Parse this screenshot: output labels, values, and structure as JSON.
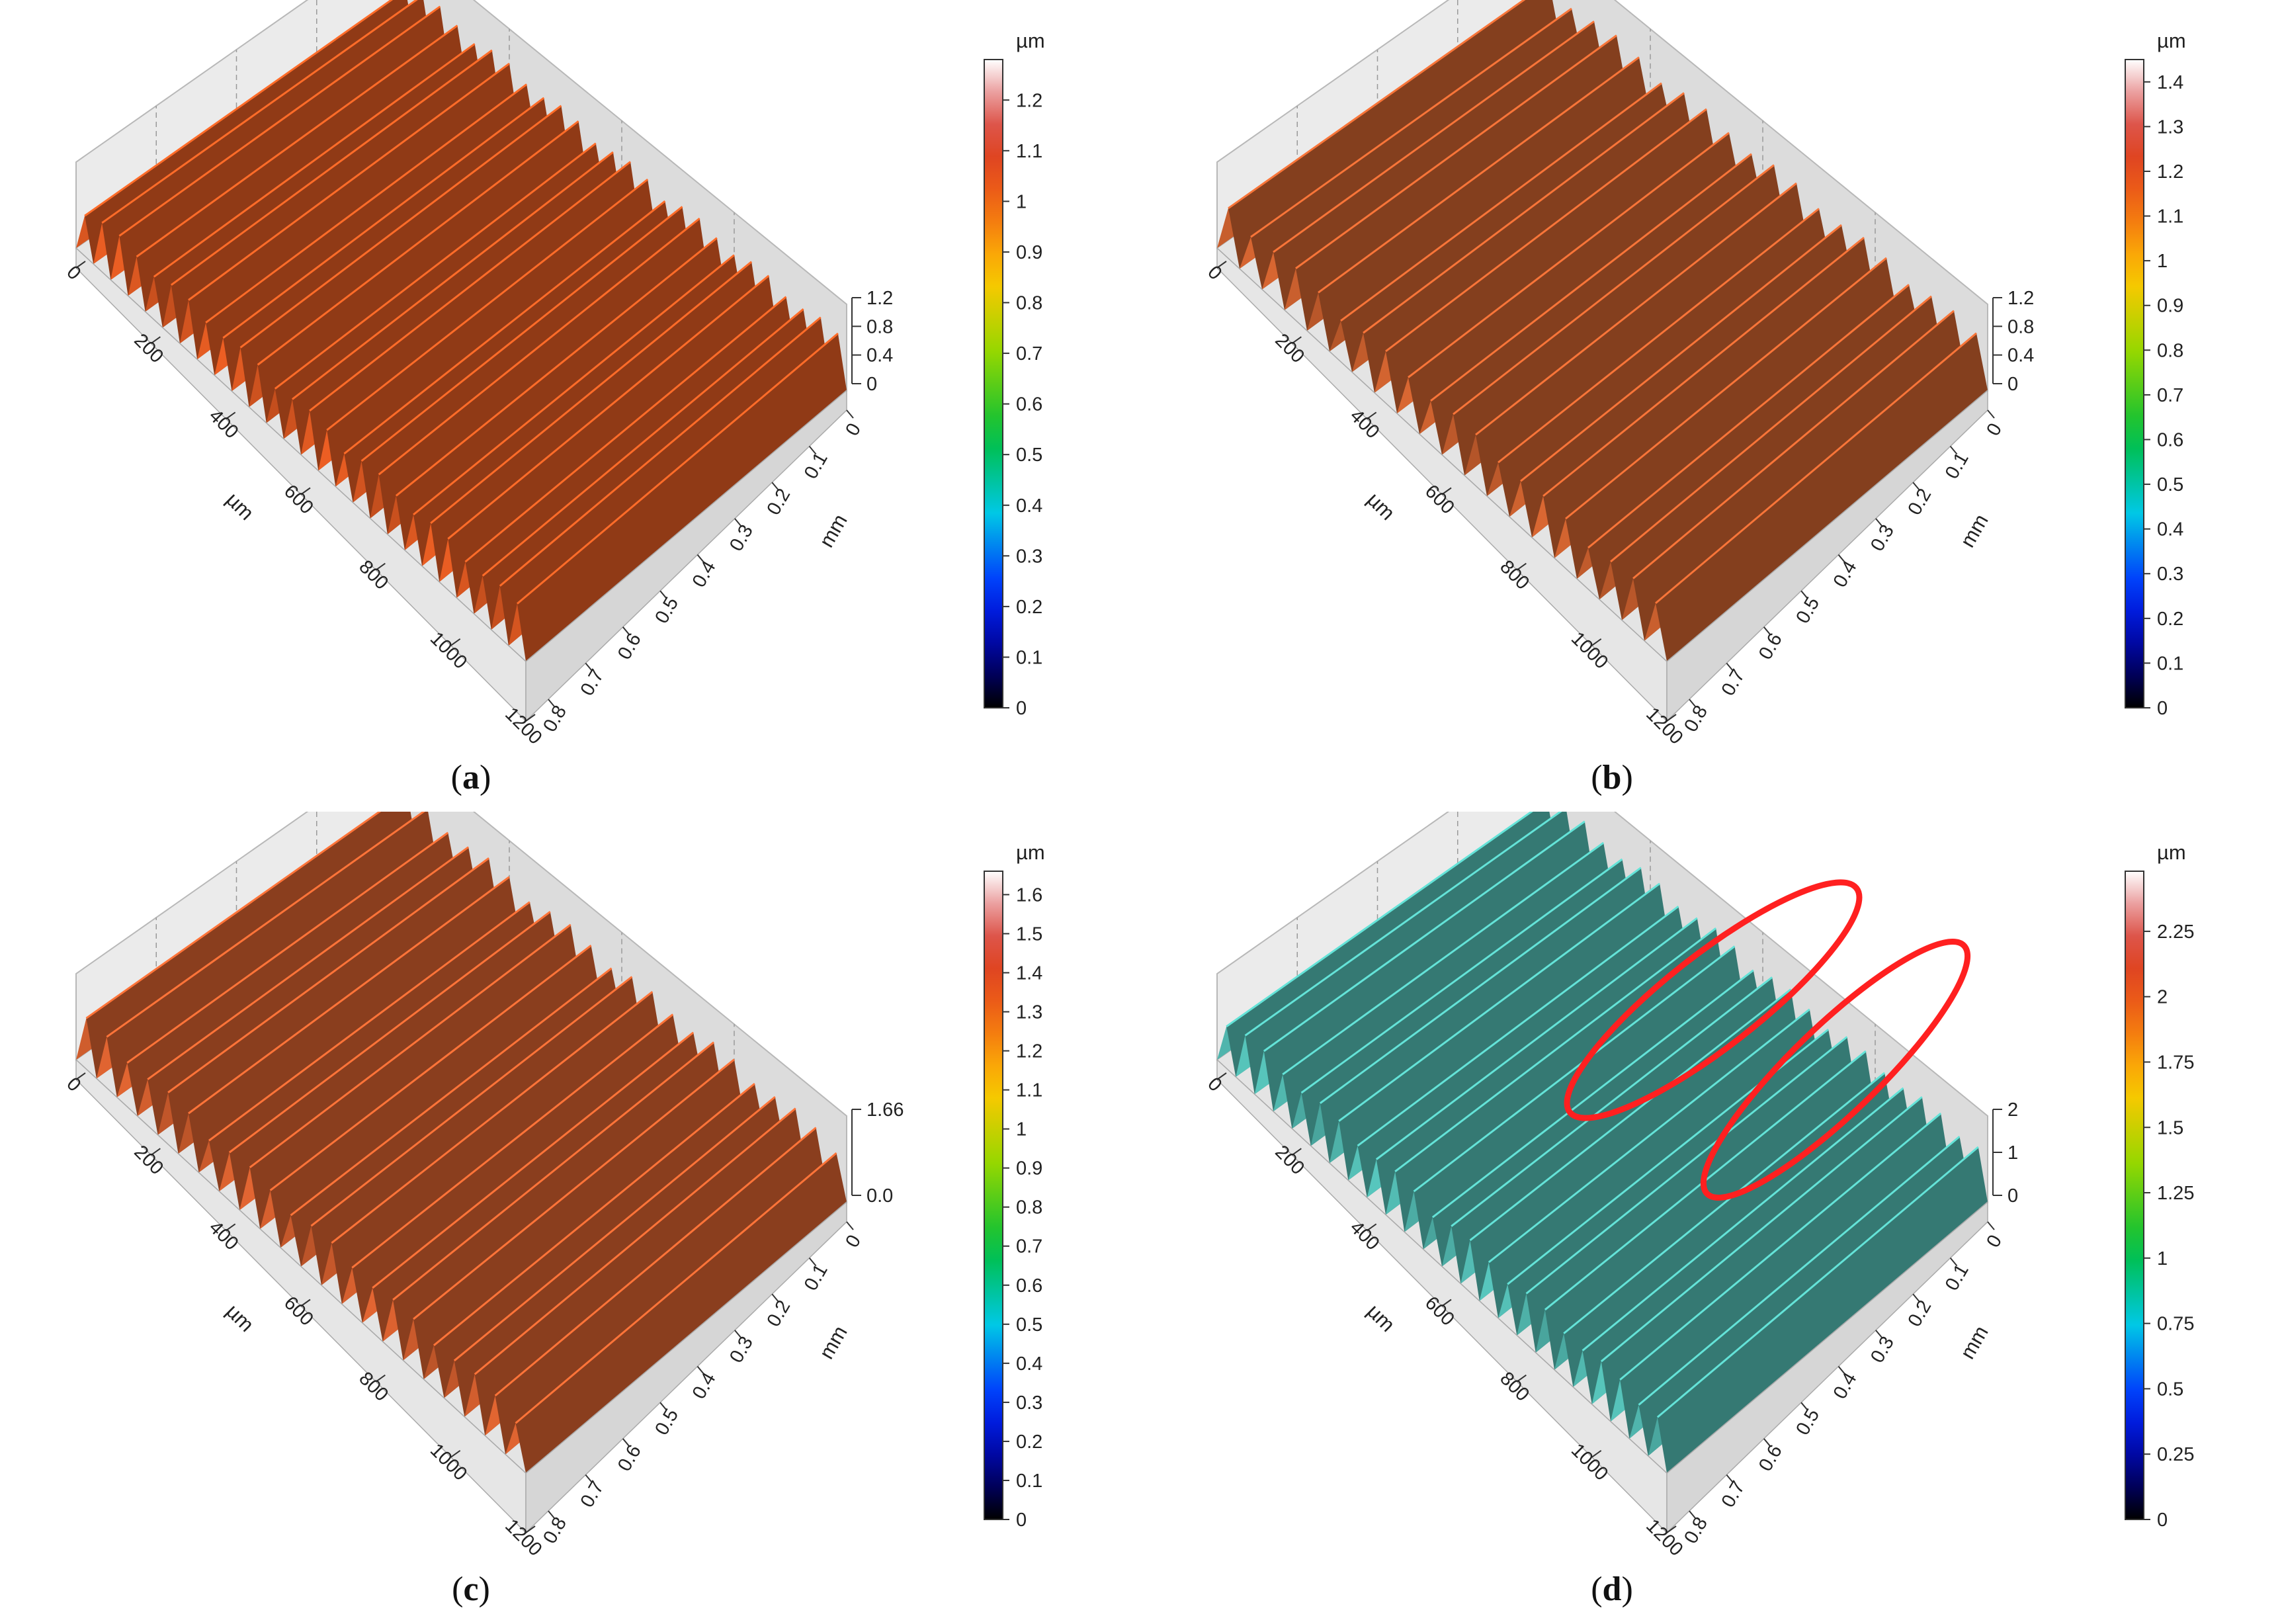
{
  "chart_data": [
    {
      "type": "surface",
      "caption_letter": "a",
      "x_axis_unit": "µm",
      "x_ticks": [
        "0",
        "200",
        "400",
        "600",
        "800",
        "1000",
        "1200"
      ],
      "y_axis_unit": "mm",
      "y_ticks": [
        "0",
        "0.1",
        "0.2",
        "0.3",
        "0.4",
        "0.5",
        "0.6",
        "0.7",
        "0.8"
      ],
      "z_ticks": [
        "0",
        "0.4",
        "0.8",
        "1.2"
      ],
      "colorbar_unit": "µm",
      "colorbar_ticks": [
        "0",
        "0.1",
        "0.2",
        "0.3",
        "0.4",
        "0.5",
        "0.6",
        "0.7",
        "0.8",
        "0.9",
        "1",
        "1.1",
        "1.2"
      ],
      "colorbar_range": [
        0,
        1.28
      ],
      "ridge_count": 26,
      "dominant_color": "#c8501e",
      "ellipses": []
    },
    {
      "type": "surface",
      "caption_letter": "b",
      "x_axis_unit": "µm",
      "x_ticks": [
        "0",
        "200",
        "400",
        "600",
        "800",
        "1000",
        "1200"
      ],
      "y_axis_unit": "mm",
      "y_ticks": [
        "0",
        "0.1",
        "0.2",
        "0.3",
        "0.4",
        "0.5",
        "0.6",
        "0.7",
        "0.8"
      ],
      "z_ticks": [
        "0",
        "0.4",
        "0.8",
        "1.2"
      ],
      "colorbar_unit": "µm",
      "colorbar_ticks": [
        "0",
        "0.1",
        "0.2",
        "0.3",
        "0.4",
        "0.5",
        "0.6",
        "0.7",
        "0.8",
        "0.9",
        "1",
        "1.1",
        "1.2",
        "1.3",
        "1.4"
      ],
      "colorbar_range": [
        0,
        1.45
      ],
      "ridge_count": 20,
      "dominant_color": "#b8572a",
      "ellipses": []
    },
    {
      "type": "surface",
      "caption_letter": "c",
      "x_axis_unit": "µm",
      "x_ticks": [
        "0",
        "200",
        "400",
        "600",
        "800",
        "1000",
        "1200"
      ],
      "y_axis_unit": "mm",
      "y_ticks": [
        "0",
        "0.1",
        "0.2",
        "0.3",
        "0.4",
        "0.5",
        "0.6",
        "0.7",
        "0.8"
      ],
      "z_ticks": [
        "0.0",
        "1.66"
      ],
      "colorbar_unit": "µm",
      "colorbar_ticks": [
        "0",
        "0.1",
        "0.2",
        "0.3",
        "0.4",
        "0.5",
        "0.6",
        "0.7",
        "0.8",
        "0.9",
        "1",
        "1.1",
        "1.2",
        "1.3",
        "1.4",
        "1.5",
        "1.6"
      ],
      "colorbar_range": [
        0,
        1.66
      ],
      "ridge_count": 22,
      "dominant_color": "#c0562a",
      "ellipses": []
    },
    {
      "type": "surface",
      "caption_letter": "d",
      "x_axis_unit": "µm",
      "x_ticks": [
        "0",
        "200",
        "400",
        "600",
        "800",
        "1000",
        "1200"
      ],
      "y_axis_unit": "mm",
      "y_ticks": [
        "0",
        "0.1",
        "0.2",
        "0.3",
        "0.4",
        "0.5",
        "0.6",
        "0.7",
        "0.8"
      ],
      "z_ticks": [
        "0",
        "1",
        "2"
      ],
      "colorbar_unit": "µm",
      "colorbar_ticks": [
        "0",
        "0.25",
        "0.5",
        "0.75",
        "1",
        "1.25",
        "1.5",
        "1.75",
        "2",
        "2.25"
      ],
      "colorbar_range": [
        0,
        2.48
      ],
      "ridge_count": 24,
      "dominant_color": "#4aa8a0",
      "ellipse_color": "#ff2020",
      "ellipses": [
        "highlight-1",
        "highlight-2"
      ]
    }
  ]
}
